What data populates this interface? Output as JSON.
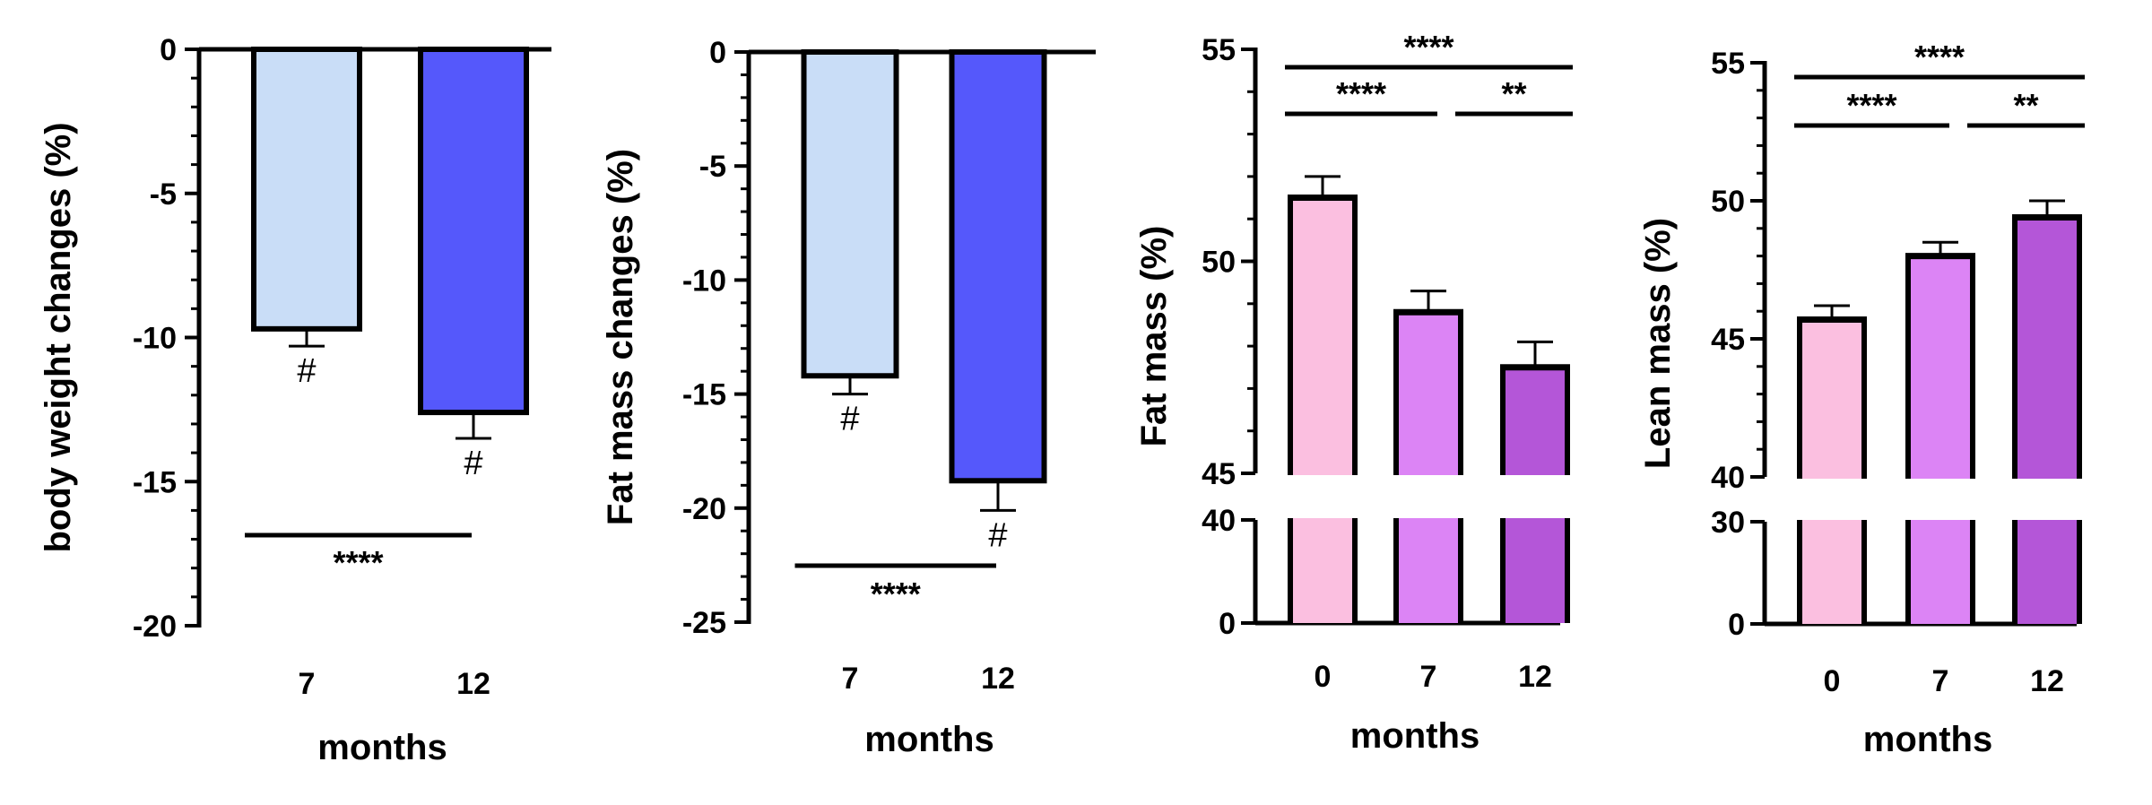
{
  "chart_data": [
    {
      "type": "bar",
      "id": "body-weight",
      "ylabel": "body weight changes (%)",
      "xlabel": "months",
      "categories": [
        "7",
        "12"
      ],
      "values": [
        -9.7,
        -12.6
      ],
      "errors": [
        0.6,
        0.9
      ],
      "bar_colors": [
        "#c9ddf7",
        "#5558fb"
      ],
      "bar_markers": [
        "#",
        "#"
      ],
      "ylim": [
        -20,
        0
      ],
      "yticks": [
        0,
        -5,
        -10,
        -15,
        -20
      ],
      "significance": [
        {
          "from": "7",
          "to": "12",
          "label": "****"
        }
      ]
    },
    {
      "type": "bar",
      "id": "fat-mass-change",
      "ylabel": "Fat mass changes (%)",
      "xlabel": "months",
      "categories": [
        "7",
        "12"
      ],
      "values": [
        -14.2,
        -18.8
      ],
      "errors": [
        0.8,
        1.3
      ],
      "bar_colors": [
        "#c9ddf7",
        "#5558fb"
      ],
      "bar_markers": [
        "#",
        "#"
      ],
      "ylim": [
        -25,
        0
      ],
      "yticks": [
        0,
        -5,
        -10,
        -15,
        -20,
        -25
      ],
      "significance": [
        {
          "from": "7",
          "to": "12",
          "label": "****"
        }
      ]
    },
    {
      "type": "bar",
      "id": "fat-mass",
      "ylabel": "Fat mass (%)",
      "xlabel": "months",
      "categories": [
        "0",
        "7",
        "12"
      ],
      "values": [
        51.5,
        48.8,
        47.5
      ],
      "errors": [
        0.5,
        0.5,
        0.6
      ],
      "bar_colors": [
        "#fbbfe0",
        "#dc84f5",
        "#b456d8"
      ],
      "broken_axis": {
        "lower": [
          0,
          40
        ],
        "upper": [
          45,
          55
        ]
      },
      "yticks_lower": [
        0,
        40
      ],
      "yticks_upper": [
        45,
        50,
        55
      ],
      "significance": [
        {
          "from": "0",
          "to": "12",
          "label": "****"
        },
        {
          "from": "0",
          "to": "7",
          "label": "****"
        },
        {
          "from": "7",
          "to": "12",
          "label": "**"
        }
      ]
    },
    {
      "type": "bar",
      "id": "lean-mass",
      "ylabel": "Lean mass (%)",
      "xlabel": "months",
      "categories": [
        "0",
        "7",
        "12"
      ],
      "values": [
        45.7,
        48.0,
        49.4
      ],
      "errors": [
        0.5,
        0.5,
        0.6
      ],
      "bar_colors": [
        "#fbbfe0",
        "#dc84f5",
        "#b456d8"
      ],
      "broken_axis": {
        "lower": [
          0,
          30
        ],
        "upper": [
          40,
          55
        ]
      },
      "yticks_lower": [
        0,
        30
      ],
      "yticks_upper": [
        40,
        45,
        50,
        55
      ],
      "significance": [
        {
          "from": "0",
          "to": "12",
          "label": "****"
        },
        {
          "from": "0",
          "to": "7",
          "label": "****"
        },
        {
          "from": "7",
          "to": "12",
          "label": "**"
        }
      ]
    }
  ]
}
